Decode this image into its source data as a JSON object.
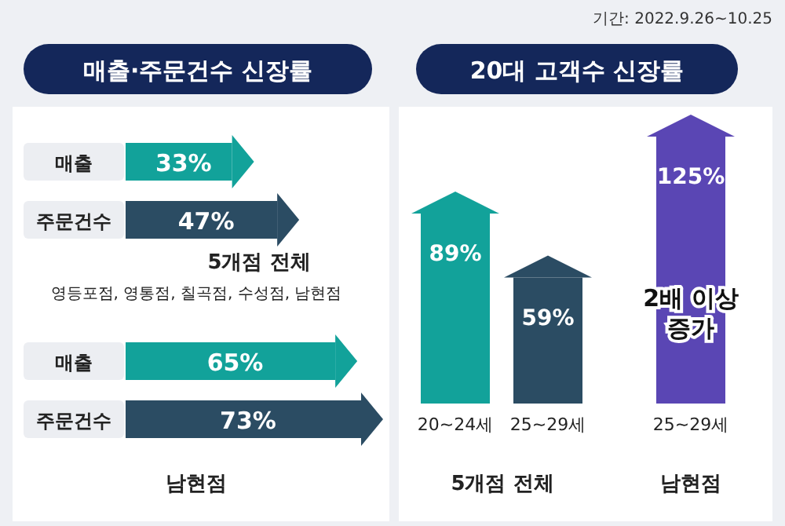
{
  "chart_data": [
    {
      "type": "bar",
      "orientation": "horizontal",
      "title": "매출·주문건수 신장률",
      "categories": [
        "매출",
        "주문건수",
        "매출",
        "주문건수"
      ],
      "values": [
        33,
        47,
        65,
        73
      ],
      "colors": [
        "#12a29a",
        "#2b4c63",
        "#12a29a",
        "#2b4c63"
      ],
      "value_labels": [
        "33%",
        "47%",
        "65%",
        "73%"
      ],
      "annotations": [
        "5개점 전체",
        "영등포점, 영통점, 칠곡점, 수성점, 남현점",
        "남현점"
      ]
    },
    {
      "type": "bar",
      "title": "20대 고객수 신장률",
      "categories": [
        "20~24세",
        "25~29세",
        "25~29세"
      ],
      "values": [
        89,
        59,
        125
      ],
      "colors": [
        "#12a29a",
        "#2b4c63",
        "#5a46b4"
      ],
      "value_labels": [
        "89%",
        "59%",
        "125%"
      ],
      "annotations": [
        "5개점 전체",
        "남현점",
        "2배 이상 증가",
        "기간: 2022.9.26~10.25"
      ]
    }
  ]
}
